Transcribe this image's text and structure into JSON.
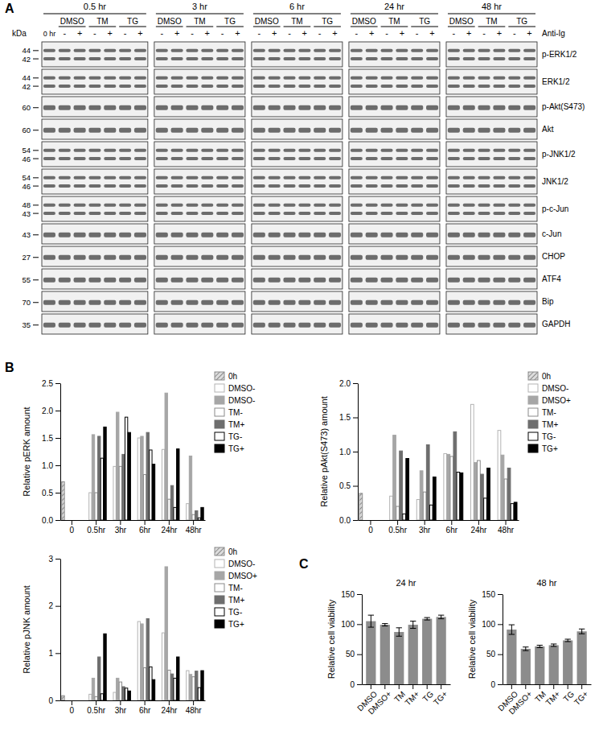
{
  "panel_labels": [
    "A",
    "B",
    "C"
  ],
  "blot": {
    "unit": "kDa",
    "treatment_label": "Anti-Ig",
    "groups": [
      {
        "time": "0.5 hr",
        "start_label": "0 hr",
        "treatments": [
          "DMSO",
          "TM",
          "TG"
        ],
        "signs": [
          "-",
          "+",
          "-",
          "+",
          "-",
          "+"
        ]
      },
      {
        "time": "3 hr",
        "treatments": [
          "DMSO",
          "TM",
          "TG"
        ],
        "signs": [
          "-",
          "+",
          "-",
          "+",
          "-",
          "+"
        ]
      },
      {
        "time": "6 hr",
        "treatments": [
          "DMSO",
          "TM",
          "TG"
        ],
        "signs": [
          "-",
          "+",
          "-",
          "+",
          "-",
          "+"
        ]
      },
      {
        "time": "24 hr",
        "treatments": [
          "DMSO",
          "TM",
          "TG"
        ],
        "signs": [
          "-",
          "+",
          "-",
          "+",
          "-",
          "+"
        ]
      },
      {
        "time": "48 hr",
        "treatments": [
          "DMSO",
          "TM",
          "TG"
        ],
        "signs": [
          "-",
          "+",
          "-",
          "+",
          "-",
          "+"
        ]
      }
    ],
    "rows": [
      {
        "markers": [
          44,
          42
        ],
        "label": "p-ERK1/2"
      },
      {
        "markers": [
          44,
          42
        ],
        "label": "ERK1/2"
      },
      {
        "markers": [
          60
        ],
        "label": "p-Akt(S473)"
      },
      {
        "markers": [
          60
        ],
        "label": "Akt"
      },
      {
        "markers": [
          54,
          46
        ],
        "label": "p-JNK1/2"
      },
      {
        "markers": [
          54,
          46
        ],
        "label": "JNK1/2"
      },
      {
        "markers": [
          48,
          43
        ],
        "label": "p-c-Jun"
      },
      {
        "markers": [
          43
        ],
        "label": "c-Jun"
      },
      {
        "markers": [
          27
        ],
        "label": "CHOP"
      },
      {
        "markers": [
          55
        ],
        "label": "ATF4"
      },
      {
        "markers": [
          70
        ],
        "label": "Bip"
      },
      {
        "markers": [
          35
        ],
        "label": "GAPDH"
      }
    ]
  },
  "chart_data": [
    {
      "type": "bar",
      "y_label": "Relative pERK amount",
      "legend": "right",
      "categories": [
        "0",
        "0.5hr",
        "3hr",
        "6hr",
        "24hr",
        "48hr"
      ],
      "ylim": [
        0,
        2.5
      ],
      "yticks": [
        {
          "value": 0,
          "label": "0.0"
        },
        0.5,
        {
          "value": 1,
          "label": "1.0"
        },
        1.5,
        {
          "value": 2,
          "label": "2.0"
        },
        2.5
      ],
      "series": [
        {
          "name": "0h",
          "color": "#8c8c8c",
          "marker": "hatched",
          "values": [
            0.7,
            null,
            null,
            null,
            null,
            null
          ]
        },
        {
          "name": "DMSO-",
          "color": "#b3b3b3",
          "marker": "hollow",
          "values": [
            null,
            0.5,
            0.98,
            1.5,
            1.29,
            0.3
          ]
        },
        {
          "name": "DMSO-",
          "color": "#a6a6a6",
          "marker": "filled",
          "values": [
            null,
            1.56,
            1.97,
            1.53,
            2.32,
            1.17
          ]
        },
        {
          "name": "TM-",
          "color": "#8a8a8a",
          "marker": "hollow",
          "values": [
            null,
            0.5,
            0.98,
            0.83,
            0.38,
            0.1
          ]
        },
        {
          "name": "TM+",
          "color": "#6e6e6e",
          "marker": "filled",
          "values": [
            null,
            1.53,
            1.2,
            1.6,
            0.63,
            0.17
          ]
        },
        {
          "name": "TG-",
          "color": "#000000",
          "marker": "hollow",
          "values": [
            null,
            1.13,
            1.88,
            1.28,
            0.23,
            0.04
          ]
        },
        {
          "name": "TG+",
          "color": "#000000",
          "marker": "filled",
          "values": [
            null,
            1.7,
            1.6,
            1.02,
            1.3,
            0.23
          ]
        }
      ]
    },
    {
      "type": "bar",
      "y_label": "Relative pAkt(S473) amount",
      "legend": "right",
      "categories": [
        "0",
        "0.5hr",
        "3hr",
        "6hr",
        "24hr",
        "48hr"
      ],
      "ylim": [
        0,
        2
      ],
      "yticks": [
        {
          "value": 0,
          "label": "0.0"
        },
        0.5,
        {
          "value": 1,
          "label": "1.0"
        },
        1.5,
        {
          "value": 2,
          "label": "2.0"
        }
      ],
      "series": [
        {
          "name": "0h",
          "color": "#8c8c8c",
          "marker": "hatched",
          "values": [
            0.39,
            null,
            null,
            null,
            null,
            null
          ]
        },
        {
          "name": "DMSO-",
          "color": "#b3b3b3",
          "marker": "hollow",
          "values": [
            null,
            0.35,
            0.3,
            0.97,
            1.69,
            1.31
          ]
        },
        {
          "name": "DMSO+",
          "color": "#a6a6a6",
          "marker": "filled",
          "values": [
            null,
            1.24,
            0.72,
            0.96,
            0.84,
            0.95
          ]
        },
        {
          "name": "TM-",
          "color": "#8a8a8a",
          "marker": "hollow",
          "values": [
            null,
            0.2,
            0.41,
            0.93,
            0.87,
            0.6
          ]
        },
        {
          "name": "TM+",
          "color": "#6e6e6e",
          "marker": "filled",
          "values": [
            null,
            1.01,
            1.1,
            1.29,
            0.67,
            0.76
          ]
        },
        {
          "name": "TG-",
          "color": "#000000",
          "marker": "hollow",
          "values": [
            null,
            0.09,
            0.22,
            0.7,
            0.32,
            0.24
          ]
        },
        {
          "name": "TG+",
          "color": "#000000",
          "marker": "filled",
          "values": [
            null,
            0.9,
            0.63,
            0.69,
            0.76,
            0.26
          ]
        }
      ]
    },
    {
      "type": "bar",
      "y_label": "Relative pJNK amount",
      "legend": "right",
      "categories": [
        "0",
        "0.5hr",
        "3hr",
        "6hr",
        "24hr",
        "48hr"
      ],
      "ylim": [
        0,
        3
      ],
      "yticks": [
        0,
        1,
        2,
        3
      ],
      "series": [
        {
          "name": "0h",
          "color": "#8c8c8c",
          "marker": "hatched",
          "values": [
            0.1,
            null,
            null,
            null,
            null,
            null
          ]
        },
        {
          "name": "DMSO-",
          "color": "#b3b3b3",
          "marker": "hollow",
          "values": [
            null,
            0.13,
            0.17,
            1.67,
            1.43,
            0.63
          ]
        },
        {
          "name": "DMSO+",
          "color": "#a6a6a6",
          "marker": "filled",
          "values": [
            null,
            0.47,
            0.47,
            1.62,
            2.83,
            0.55
          ]
        },
        {
          "name": "TM-",
          "color": "#8a8a8a",
          "marker": "hollow",
          "values": [
            null,
            0.08,
            0.39,
            0.69,
            0.64,
            0.5
          ]
        },
        {
          "name": "TM+",
          "color": "#6e6e6e",
          "marker": "filled",
          "values": [
            null,
            0.92,
            0.29,
            1.73,
            0.56,
            0.62
          ]
        },
        {
          "name": "TG-",
          "color": "#000000",
          "marker": "hollow",
          "values": [
            null,
            0.14,
            0.26,
            0.71,
            0.47,
            0.27
          ]
        },
        {
          "name": "TG+",
          "color": "#000000",
          "marker": "filled",
          "values": [
            null,
            1.41,
            0.2,
            0.44,
            0.92,
            0.63
          ]
        }
      ]
    },
    {
      "type": "bar",
      "title": "24 hr",
      "y_label": "Relative cell viability",
      "color": "#8c8c8c",
      "categories": [
        "DMSO",
        "DMSO+",
        "TM",
        "TM+",
        "TG",
        "TG+"
      ],
      "values": [
        105,
        99,
        87,
        99,
        109,
        112
      ],
      "errors": [
        10,
        2,
        7,
        6,
        2,
        3
      ],
      "ylim": [
        0,
        150
      ],
      "yticks": [
        0,
        50,
        100,
        150
      ]
    },
    {
      "type": "bar",
      "title": "48 hr",
      "y_label": "Relative cell viability",
      "color": "#8c8c8c",
      "categories": [
        "DMSO",
        "DMSO+",
        "TM",
        "TM+",
        "TG",
        "TG+"
      ],
      "values": [
        91,
        59,
        63,
        65,
        73,
        88
      ],
      "errors": [
        8,
        3,
        2,
        2,
        2,
        4
      ],
      "ylim": [
        0,
        150
      ],
      "yticks": [
        0,
        50,
        100,
        150
      ]
    }
  ]
}
